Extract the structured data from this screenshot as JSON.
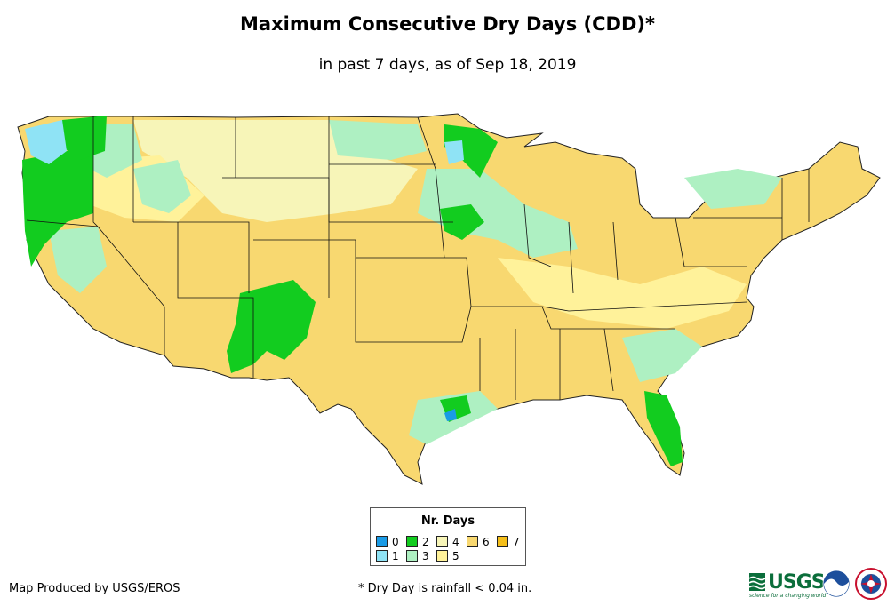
{
  "header": {
    "title": "Maximum Consecutive Dry Days (CDD)*",
    "subtitle": "in past 7 days, as of Sep 18, 2019"
  },
  "legend": {
    "title": "Nr. Days",
    "items": [
      {
        "label": "0",
        "color": "#1a9be6"
      },
      {
        "label": "1",
        "color": "#8fe3f5"
      },
      {
        "label": "2",
        "color": "#12cc1f"
      },
      {
        "label": "3",
        "color": "#aef0c2"
      },
      {
        "label": "4",
        "color": "#f7f5b8"
      },
      {
        "label": "5",
        "color": "#fff29a"
      },
      {
        "label": "6",
        "color": "#f8d870"
      },
      {
        "label": "7",
        "color": "#f5bf1a"
      }
    ]
  },
  "footer": {
    "credit": "Map Produced by USGS/EROS",
    "footnote": "* Dry Day is rainfall < 0.04 in."
  },
  "logos": {
    "usgs": "USGS",
    "usgs_tagline": "science for a changing world",
    "noaa": "noaa",
    "nws": "national weather service"
  }
}
